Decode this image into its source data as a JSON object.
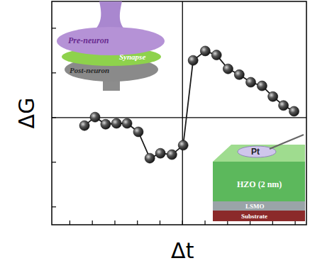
{
  "chart_data": {
    "type": "line",
    "x_label": "Δt",
    "y_label": "ΔG",
    "x": [
      -4.35,
      -3.88,
      -3.41,
      -2.93,
      -2.46,
      -1.96,
      -1.45,
      -0.98,
      -0.47,
      0.03,
      0.47,
      1.01,
      1.51,
      2.02,
      2.52,
      3.03,
      3.53,
      4.01,
      4.48,
      4.95
    ],
    "values": [
      -0.18,
      0.01,
      -0.15,
      -0.13,
      -0.13,
      -0.32,
      -0.91,
      -0.8,
      -0.83,
      -0.62,
      1.28,
      1.49,
      1.4,
      1.09,
      0.96,
      0.79,
      0.71,
      0.47,
      0.27,
      0.14
    ],
    "color": "#1a1a1a",
    "marker": "circle",
    "xlim": [
      -5.8,
      5.5
    ],
    "ylim": [
      -2.4,
      2.6
    ],
    "xticks": [
      -5,
      -4,
      -3,
      -2,
      -1,
      0,
      1,
      2,
      3,
      4,
      5
    ],
    "yticks": [
      -2,
      -1,
      0,
      1,
      2
    ],
    "tick_labels": false,
    "grid": false,
    "annotations": [
      "Pre-neuron",
      "Synapse",
      "Post-neuron",
      "Pt",
      "HZO (2 nm)",
      "LSMO",
      "Substrate"
    ]
  }
}
